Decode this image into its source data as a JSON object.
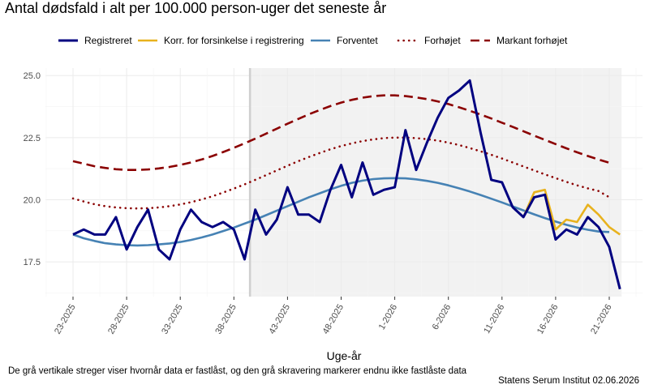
{
  "chart_data": {
    "type": "line",
    "title": "Antal dødsfald i alt per 100.000 person-uger det seneste år",
    "xlabel": "Uge-år",
    "ylabel": "",
    "ylim": [
      16.1,
      25.3
    ],
    "y_ticks": [
      "17.5",
      "20.0",
      "22.5",
      "25.0"
    ],
    "y_tick_values": [
      17.5,
      20.0,
      22.5,
      25.0
    ],
    "x_ticks": [
      "23-2025",
      "28-2025",
      "33-2025",
      "38-2025",
      "43-2025",
      "48-2025",
      "1-2026",
      "6-2026",
      "11-2026",
      "16-2026",
      "21-2026"
    ],
    "x_tick_index": [
      0,
      5,
      10,
      15,
      20,
      25,
      30,
      35,
      40,
      45,
      50
    ],
    "locked_until_index": 16.5,
    "legend_position": "top",
    "series": [
      {
        "name": "Registreret",
        "color": "#000080",
        "style": "solid",
        "start_index": 0,
        "values": [
          18.6,
          18.8,
          18.6,
          18.6,
          19.3,
          18.0,
          18.9,
          19.6,
          18.0,
          17.6,
          18.8,
          19.6,
          19.1,
          18.9,
          19.1,
          18.8,
          17.6,
          19.6,
          18.6,
          19.2,
          20.5,
          19.4,
          19.4,
          19.1,
          20.4,
          21.4,
          20.1,
          21.5,
          20.2,
          20.4,
          20.5,
          22.8,
          21.2,
          22.3,
          23.3,
          24.1,
          24.4,
          24.8,
          22.7,
          20.8,
          20.7,
          19.7,
          19.3,
          20.1,
          20.2,
          18.4,
          18.8,
          18.6,
          19.3,
          18.9,
          18.1,
          16.4
        ]
      },
      {
        "name": "Korr. for forsinkelse i registrering",
        "color": "#E8B21E",
        "style": "solid",
        "start_index": 42,
        "values": [
          19.3,
          20.3,
          20.4,
          18.8,
          19.2,
          19.1,
          19.8,
          19.4,
          18.9,
          18.6
        ]
      },
      {
        "name": "Forventet",
        "color": "#4682B4",
        "style": "solid",
        "start_index": 0,
        "values": [
          18.6,
          18.45,
          18.34,
          18.25,
          18.2,
          18.17,
          18.16,
          18.17,
          18.2,
          18.24,
          18.3,
          18.38,
          18.48,
          18.6,
          18.74,
          18.88,
          19.04,
          19.2,
          19.38,
          19.56,
          19.74,
          19.92,
          20.1,
          20.26,
          20.42,
          20.56,
          20.68,
          20.77,
          20.83,
          20.86,
          20.87,
          20.86,
          20.82,
          20.76,
          20.68,
          20.58,
          20.46,
          20.33,
          20.19,
          20.04,
          19.89,
          19.73,
          19.57,
          19.41,
          19.26,
          19.12,
          18.99,
          18.88,
          18.79,
          18.72,
          18.7
        ]
      },
      {
        "name": "Forhøjet",
        "color": "#8B0000",
        "style": "dotted",
        "start_index": 0,
        "values": [
          20.05,
          19.93,
          19.82,
          19.74,
          19.69,
          19.66,
          19.65,
          19.66,
          19.69,
          19.74,
          19.81,
          19.9,
          20.01,
          20.14,
          20.29,
          20.45,
          20.62,
          20.8,
          20.99,
          21.18,
          21.37,
          21.55,
          21.72,
          21.88,
          22.03,
          22.16,
          22.27,
          22.36,
          22.43,
          22.48,
          22.5,
          22.5,
          22.48,
          22.44,
          22.38,
          22.3,
          22.2,
          22.08,
          21.95,
          21.81,
          21.66,
          21.5,
          21.34,
          21.18,
          21.02,
          20.87,
          20.72,
          20.58,
          20.46,
          20.35,
          20.1
        ]
      },
      {
        "name": "Markant forhøjet",
        "color": "#8B0000",
        "style": "dashed",
        "start_index": 0,
        "values": [
          21.55,
          21.45,
          21.35,
          21.28,
          21.23,
          21.2,
          21.2,
          21.22,
          21.26,
          21.32,
          21.4,
          21.5,
          21.62,
          21.76,
          21.92,
          22.09,
          22.27,
          22.46,
          22.66,
          22.86,
          23.06,
          23.25,
          23.44,
          23.61,
          23.77,
          23.91,
          24.02,
          24.11,
          24.17,
          24.2,
          24.2,
          24.17,
          24.12,
          24.05,
          23.96,
          23.85,
          23.72,
          23.58,
          23.43,
          23.27,
          23.1,
          22.93,
          22.76,
          22.58,
          22.41,
          22.24,
          22.07,
          21.91,
          21.76,
          21.62,
          21.49
        ]
      }
    ]
  },
  "footer": {
    "caption": "De grå vertikale streger viser hvornår data er fastlåst, og den grå skravering markerer endnu ikke fastlåste data",
    "credit": "Statens Serum Institut  02.06.2026"
  }
}
